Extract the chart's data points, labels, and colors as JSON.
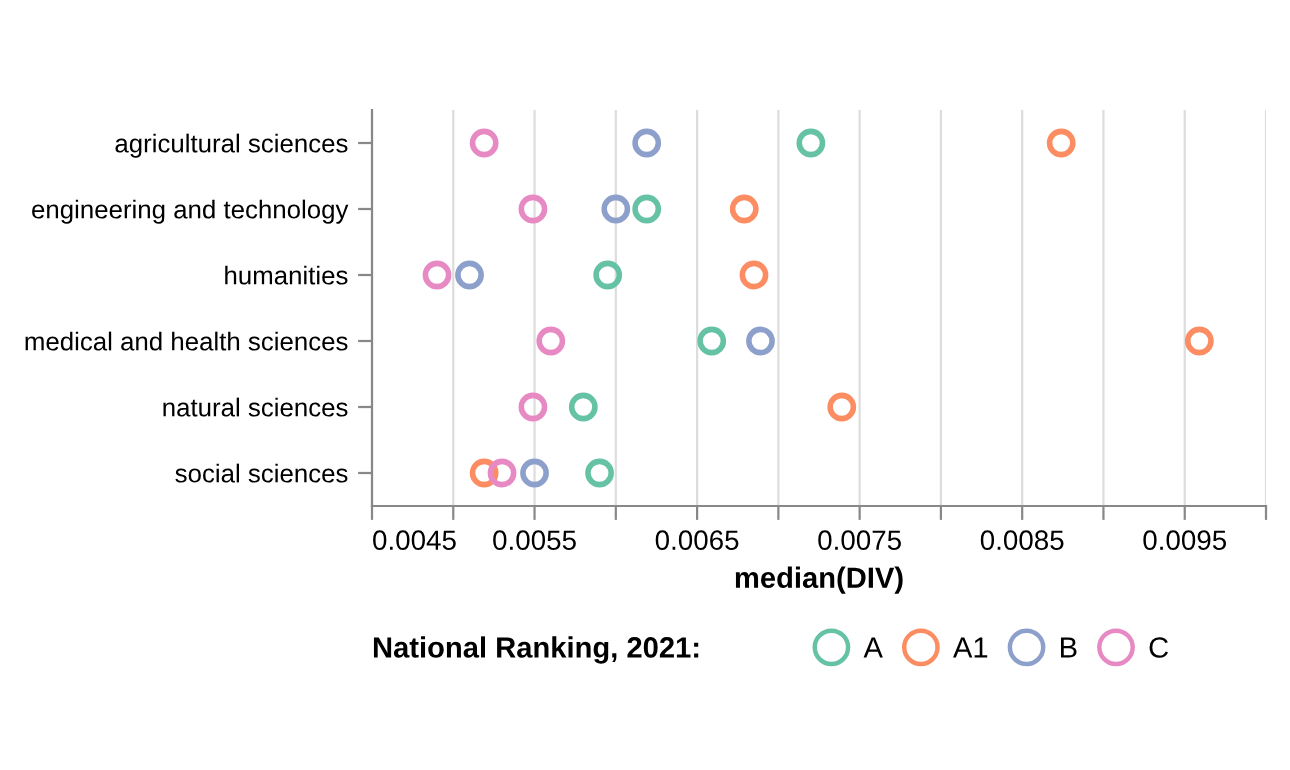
{
  "chart_data": {
    "type": "scatter",
    "xlabel": "median(DIV)",
    "legend_title": "National Ranking, 2021:",
    "legend": "bottom",
    "grid": "x",
    "marker": "circle",
    "categories": [
      "agricultural sciences",
      "engineering and technology",
      "humanities",
      "medical and health sciences",
      "natural sciences",
      "social sciences"
    ],
    "orientation": "horizontal",
    "xlim": [
      0.0045,
      0.01
    ],
    "xticks": [
      0.0045,
      {
        "value": 0.005,
        "label": null
      },
      0.0055,
      {
        "value": 0.006,
        "label": null
      },
      0.0065,
      {
        "value": 0.007,
        "label": null
      },
      0.0075,
      {
        "value": 0.008,
        "label": null
      },
      0.0085,
      {
        "value": 0.009,
        "label": null
      },
      0.0095,
      {
        "value": 0.01,
        "label": null
      }
    ],
    "series": [
      {
        "name": "A",
        "color": "#66c2a5",
        "values": [
          0.0072,
          0.00619,
          0.00595,
          0.00659,
          0.0058,
          0.0059
        ]
      },
      {
        "name": "A1",
        "color": "#fc8d62",
        "values": [
          0.00874,
          0.00679,
          0.00685,
          0.00959,
          0.00739,
          0.00519
        ]
      },
      {
        "name": "B",
        "color": "#8da0cb",
        "values": [
          0.00619,
          0.006,
          0.0051,
          0.00689,
          null,
          0.0055
        ]
      },
      {
        "name": "C",
        "color": "#e78ac3",
        "values": [
          0.00519,
          0.00549,
          0.0049,
          0.0056,
          0.00549,
          0.0053
        ]
      }
    ]
  }
}
